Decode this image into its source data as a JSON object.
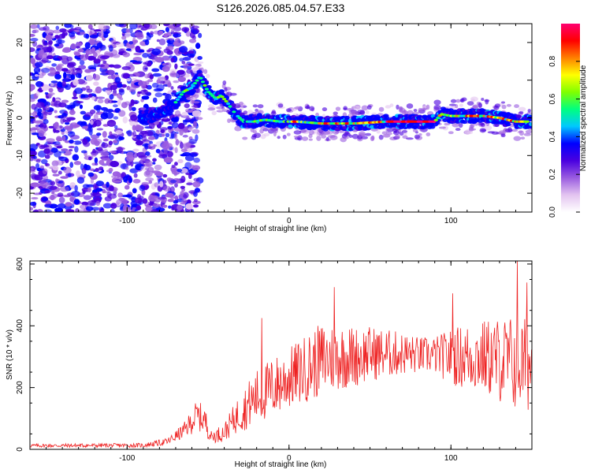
{
  "figure_title": "S126.2026.085.04.57.E33",
  "chart_data": [
    {
      "type": "heatmap",
      "title": "S126.2026.085.04.57.E33",
      "xlabel": "Height of straight line (km)",
      "ylabel": "Frequency (Hz)",
      "xlim": [
        -160,
        150
      ],
      "ylim": [
        -25,
        25
      ],
      "xticks": [
        -100,
        0,
        100
      ],
      "yticks": [
        -20,
        -10,
        0,
        10,
        20
      ],
      "colorbar": {
        "label": "Normalized spectral amplitude",
        "range": [
          0,
          1
        ],
        "ticks": [
          "0.0",
          "0.2",
          "0.4",
          "0.6",
          "0.8"
        ],
        "colors": [
          "#ffffff",
          "#e3c4f0",
          "#9a5ce0",
          "#4a00e0",
          "#0000ff",
          "#00c8ff",
          "#00ff80",
          "#80ff00",
          "#ffff00",
          "#ff8000",
          "#ff0000",
          "#ff0070"
        ]
      },
      "ridge": {
        "x": [
          -90,
          -80,
          -72,
          -65,
          -60,
          -55,
          -50,
          -45,
          -42,
          -38,
          -33,
          -28,
          -22,
          -15,
          -5,
          5,
          20,
          40,
          60,
          80,
          90,
          94,
          100,
          110,
          120,
          130,
          140,
          148
        ],
        "y": [
          0,
          1,
          3,
          7,
          8,
          11,
          7,
          5,
          6,
          4,
          1,
          -1,
          -1,
          -0.5,
          -1,
          -1,
          -1.5,
          -1.5,
          -1,
          -1,
          -1,
          1,
          0.5,
          0.5,
          0.5,
          0,
          -1,
          -1
        ]
      }
    },
    {
      "type": "line",
      "xlabel": "Height of straight line (km)",
      "ylabel": "SNR (10 * v/v)",
      "xlim": [
        -160,
        150
      ],
      "ylim": [
        0,
        610
      ],
      "xticks": [
        -100,
        0,
        100
      ],
      "yticks": [
        0,
        200,
        400,
        600
      ],
      "series": [
        {
          "name": "SNR",
          "color": "#ee2222",
          "envelope": {
            "x": [
              -160,
              -90,
              -75,
              -65,
              -60,
              -57,
              -52,
              -48,
              -40,
              -35,
              -30,
              -20,
              -10,
              0,
              10,
              20,
              30,
              40,
              50,
              60,
              70,
              80,
              90,
              100,
              110,
              120,
              130,
              140,
              150
            ],
            "mean": [
              12,
              13,
              25,
              60,
              90,
              110,
              95,
              40,
              55,
              90,
              120,
              170,
              200,
              230,
              260,
              290,
              300,
              300,
              310,
              310,
              310,
              305,
              305,
              300,
              300,
              300,
              290,
              280,
              270
            ],
            "spread": [
              6,
              7,
              12,
              25,
              40,
              50,
              45,
              20,
              30,
              45,
              65,
              90,
              100,
              100,
              110,
              120,
              110,
              100,
              90,
              80,
              70,
              60,
              60,
              90,
              110,
              120,
              140,
              160,
              150
            ]
          },
          "notable_peaks": [
            {
              "x": -17,
              "y": 425
            },
            {
              "x": 28,
              "y": 525
            },
            {
              "x": 101,
              "y": 505
            },
            {
              "x": 141,
              "y": 610
            },
            {
              "x": 147,
              "y": 540
            }
          ]
        }
      ]
    }
  ]
}
